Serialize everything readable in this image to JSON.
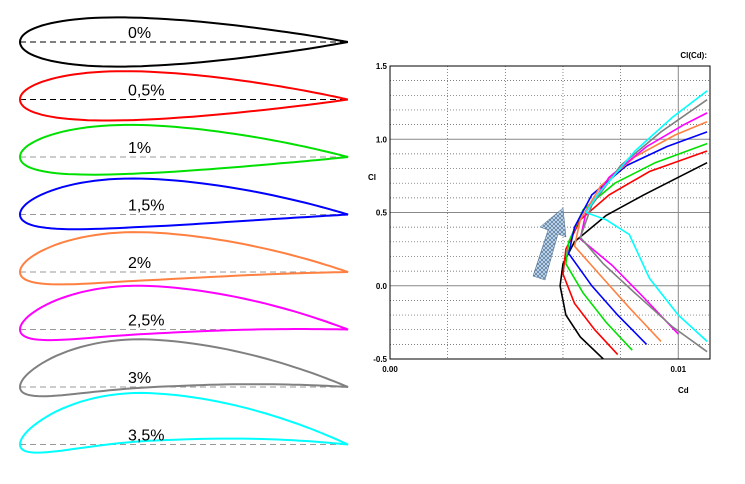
{
  "airfoils": [
    {
      "label": "0%",
      "color": "#000000"
    },
    {
      "label": "0,5%",
      "color": "#ff0000"
    },
    {
      "label": "1%",
      "color": "#00e000"
    },
    {
      "label": "1,5%",
      "color": "#0000ff"
    },
    {
      "label": "2%",
      "color": "#ff8040"
    },
    {
      "label": "2,5%",
      "color": "#ff00ff"
    },
    {
      "label": "3%",
      "color": "#808080"
    },
    {
      "label": "3,5%",
      "color": "#00ffff"
    }
  ],
  "chart_data": {
    "type": "line",
    "title": "Cl(Cd):",
    "x_label": "Cd",
    "y_label": "Cl",
    "xlim": [
      0,
      0.0111
    ],
    "ylim": [
      -0.5,
      1.5
    ],
    "xticks": [
      {
        "value": 0,
        "label": "0.00"
      },
      {
        "value": 0.01,
        "label": "0.01"
      }
    ],
    "yticks": [
      {
        "value": -0.5,
        "label": "-0.5"
      },
      {
        "value": 0,
        "label": "0.0"
      },
      {
        "value": 0.5,
        "label": "0.5"
      },
      {
        "value": 1,
        "label": "1.0"
      },
      {
        "value": 1.5,
        "label": "1.5"
      }
    ],
    "x_minor_grid": [
      0.002,
      0.004,
      0.006,
      0.008
    ],
    "y_minor_grid": [
      -0.4,
      -0.3,
      -0.2,
      -0.1,
      0.1,
      0.2,
      0.3,
      0.4,
      0.6,
      0.7,
      0.8,
      0.9,
      1.1,
      1.2,
      1.3,
      1.4
    ],
    "grid": true,
    "series": [
      {
        "color": "#000000",
        "x": [
          0.0074,
          0.0066,
          0.0061,
          0.0059,
          0.006,
          0.0064,
          0.0075,
          0.0088,
          0.01,
          0.011
        ],
        "values": [
          -0.5,
          -0.35,
          -0.2,
          0,
          0.15,
          0.3,
          0.48,
          0.62,
          0.74,
          0.84
        ]
      },
      {
        "color": "#ff0000",
        "x": [
          0.0079,
          0.0071,
          0.0064,
          0.006,
          0.0061,
          0.0066,
          0.0076,
          0.009,
          0.011
        ],
        "values": [
          -0.47,
          -0.3,
          -0.12,
          0.08,
          0.25,
          0.45,
          0.62,
          0.78,
          0.92
        ]
      },
      {
        "color": "#00e000",
        "x": [
          0.0084,
          0.0075,
          0.0067,
          0.0061,
          0.0062,
          0.0067,
          0.0078,
          0.0092,
          0.011
        ],
        "values": [
          -0.44,
          -0.25,
          -0.05,
          0.15,
          0.3,
          0.52,
          0.7,
          0.84,
          0.97
        ]
      },
      {
        "color": "#0000ff",
        "x": [
          0.0089,
          0.0079,
          0.007,
          0.0062,
          0.0064,
          0.007,
          0.0082,
          0.0096,
          0.011
        ],
        "values": [
          -0.4,
          -0.2,
          0,
          0.22,
          0.4,
          0.62,
          0.82,
          0.95,
          1.05
        ]
      },
      {
        "color": "#ff8040",
        "x": [
          0.0094,
          0.0083,
          0.0073,
          0.0064,
          0.0066,
          0.0073,
          0.0085,
          0.0099,
          0.011
        ],
        "values": [
          -0.38,
          -0.15,
          0.07,
          0.27,
          0.45,
          0.68,
          0.88,
          1.03,
          1.12
        ]
      },
      {
        "color": "#ff00ff",
        "x": [
          0.01,
          0.0088,
          0.0077,
          0.0066,
          0.0068,
          0.0076,
          0.0089,
          0.0102,
          0.011
        ],
        "values": [
          -0.33,
          -0.08,
          0.14,
          0.32,
          0.5,
          0.74,
          0.95,
          1.1,
          1.18
        ]
      },
      {
        "color": "#808080",
        "x": [
          0.011,
          0.0098,
          0.0085,
          0.0074,
          0.0066,
          0.007,
          0.008,
          0.0094,
          0.011
        ],
        "values": [
          -0.45,
          -0.28,
          -0.05,
          0.15,
          0.33,
          0.55,
          0.82,
          1.05,
          1.27
        ]
      },
      {
        "color": "#00ffff",
        "x": [
          0.011,
          0.01,
          0.009,
          0.0083,
          0.0075,
          0.0068,
          0.0072,
          0.0085,
          0.0098,
          0.011
        ],
        "values": [
          -0.38,
          -0.2,
          0.05,
          0.35,
          0.45,
          0.5,
          0.62,
          0.92,
          1.15,
          1.33
        ]
      }
    ]
  }
}
